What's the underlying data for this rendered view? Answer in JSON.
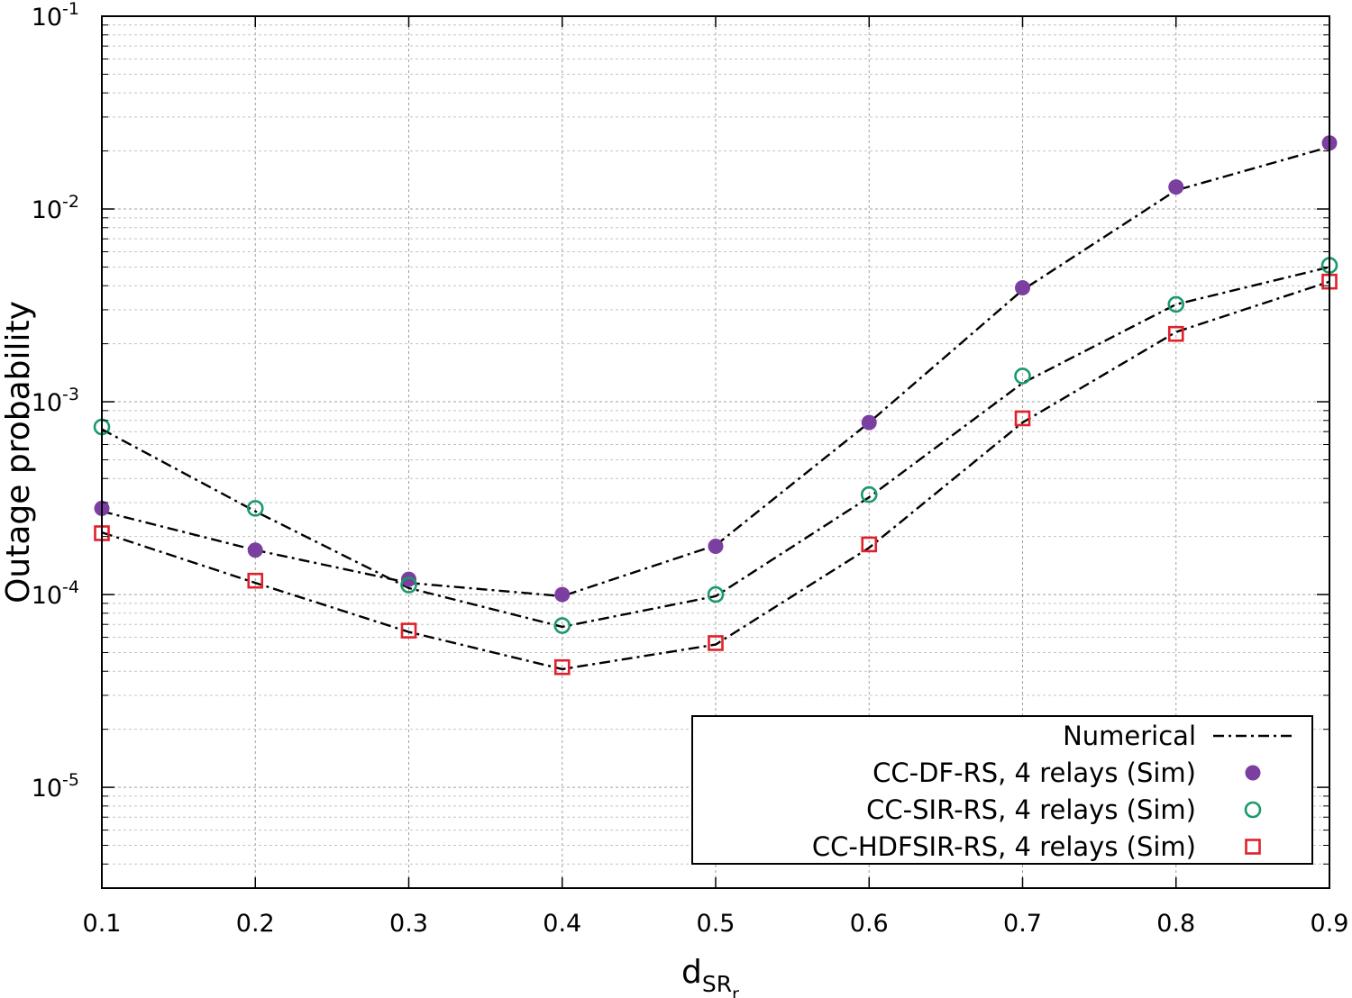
{
  "chart_data": {
    "type": "line",
    "title": "",
    "xlabel": "d",
    "xlabel_sub": "SR",
    "xlabel_subsub": "r",
    "ylabel": "Outage probability",
    "xlim": [
      0.1,
      0.9
    ],
    "ylim": [
      3e-06,
      0.1
    ],
    "yscale": "log",
    "grid": true,
    "legend_position": "bottom-right",
    "x_ticks": [
      "0.1",
      "0.2",
      "0.3",
      "0.4",
      "0.5",
      "0.6",
      "0.7",
      "0.8",
      "0.9"
    ],
    "y_ticks": [
      {
        "base": "10",
        "exp": "-1",
        "value": 0.1
      },
      {
        "base": "10",
        "exp": "-2",
        "value": 0.01
      },
      {
        "base": "10",
        "exp": "-3",
        "value": 0.001
      },
      {
        "base": "10",
        "exp": "-4",
        "value": 0.0001
      },
      {
        "base": "10",
        "exp": "-5",
        "value": 1e-05
      }
    ],
    "x": [
      0.1,
      0.2,
      0.3,
      0.4,
      0.5,
      0.6,
      0.7,
      0.8,
      0.9
    ],
    "series": [
      {
        "name": "Numerical",
        "role": "line",
        "color": "#000000",
        "curves": [
          [
            0.00027,
            0.00017,
            0.000115,
            9.8e-05,
            0.00018,
            0.00078,
            0.0038,
            0.0125,
            0.021
          ],
          [
            0.00072,
            0.00027,
            0.000108,
            6.8e-05,
            9.8e-05,
            0.00032,
            0.00125,
            0.0032,
            0.005
          ],
          [
            0.00021,
            0.000115,
            6.4e-05,
            4.1e-05,
            5.5e-05,
            0.000175,
            0.00078,
            0.0023,
            0.0042
          ]
        ]
      },
      {
        "name": "CC-DF-RS, 4 relays (Sim)",
        "marker": "filled-circle",
        "color": "#7b3fa0",
        "values": [
          0.00028,
          0.00017,
          0.00012,
          0.0001,
          0.000178,
          0.00078,
          0.0039,
          0.013,
          0.022
        ]
      },
      {
        "name": "CC-SIR-RS, 4 relays (Sim)",
        "marker": "open-circle",
        "color": "#1a9a6a",
        "values": [
          0.00074,
          0.00028,
          0.000112,
          6.9e-05,
          0.0001,
          0.00033,
          0.00136,
          0.0032,
          0.0051
        ]
      },
      {
        "name": "CC-HDFSIR-RS, 4 relays (Sim)",
        "marker": "open-square",
        "color": "#e0202a",
        "values": [
          0.000208,
          0.000118,
          6.5e-05,
          4.2e-05,
          5.6e-05,
          0.000182,
          0.00082,
          0.00225,
          0.0042
        ]
      }
    ]
  }
}
